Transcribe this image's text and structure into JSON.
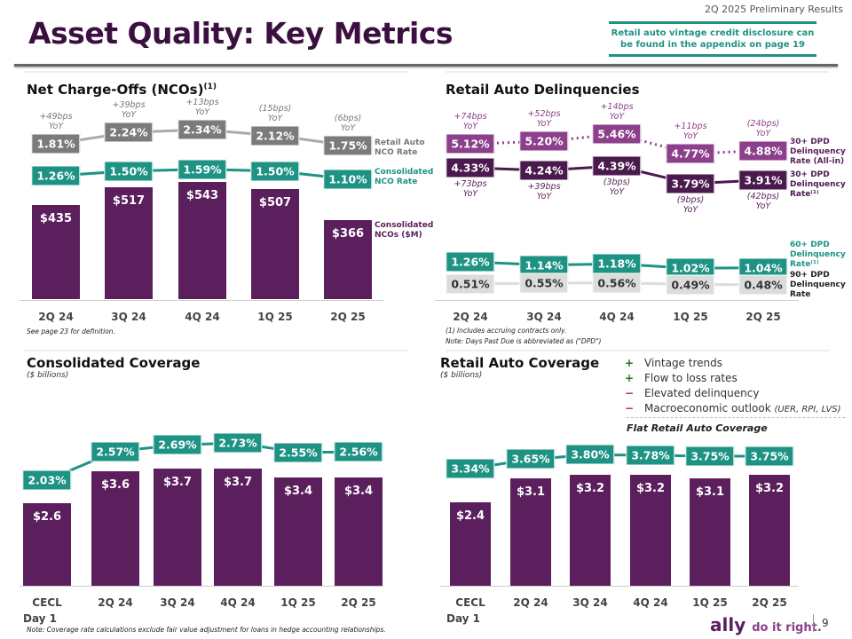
{
  "header": {
    "title": "Asset Quality: Key Metrics",
    "results": "2Q 2025 Preliminary Results",
    "disclosure": "Retail auto vintage credit disclosure can be found in the appendix on page 19"
  },
  "colors": {
    "purple": "#5a1f5c",
    "teal": "#1e9384",
    "grey": "#7b7b7b",
    "lightgrey": "#dcdcdc",
    "magenta": "#8c3f8a",
    "darkpurple": "#4a1a4e"
  },
  "nco": {
    "title": "Net Charge-Offs (NCOs)",
    "sup": "(1)",
    "footnote": "See page 23 for definition.",
    "legend": {
      "retail": "Retail Auto\nNCO Rate",
      "consolidated": "Consolidated\nNCO Rate",
      "ncos": "Consolidated\nNCOs ($M)"
    }
  },
  "delinq": {
    "title": "Retail Auto Delinquencies",
    "footnote1": "(1) Includes accruing contracts only.",
    "footnote2": "Note: Days Past Due is abbreviated as (\"DPD\")",
    "legend": {
      "allin": "30+ DPD\nDelinquency\nRate (All-in)",
      "d30": "30+ DPD\nDelinquency\nRate⁽¹⁾",
      "d60": "60+ DPD\nDelinquency\nRate⁽¹⁾",
      "d90": "90+ DPD\nDelinquency\nRate"
    }
  },
  "cons_cov": {
    "title": "Consolidated Coverage",
    "subtitle": "($ billions)"
  },
  "retail_cov": {
    "title": "Retail Auto Coverage",
    "subtitle": "($ billions)",
    "drivers": [
      {
        "sign": "+",
        "text": "Vintage trends"
      },
      {
        "sign": "+",
        "text": "Flow to loss rates"
      },
      {
        "sign": "−",
        "text": "Elevated delinquency"
      },
      {
        "sign": "−",
        "text": "Macroeconomic outlook",
        "note": "(UER, RPI, LVS)"
      }
    ],
    "conclusion": "Flat Retail Auto Coverage"
  },
  "footer": {
    "note": "Note: Coverage rate calculations exclude fair value adjustment for loans in hedge accounting relationships.",
    "logo": "ally do it right.",
    "page": "9"
  },
  "chart_data": [
    {
      "type": "bar",
      "name": "nco",
      "categories": [
        "2Q 24",
        "3Q 24",
        "4Q 24",
        "1Q 25",
        "2Q 25"
      ],
      "series": [
        {
          "name": "Consolidated NCOs ($M)",
          "type": "bar",
          "values": [
            435,
            517,
            543,
            507,
            366
          ],
          "labels": [
            "$435",
            "$517",
            "$543",
            "$507",
            "$366"
          ]
        },
        {
          "name": "Retail Auto NCO Rate",
          "type": "line",
          "values": [
            1.81,
            2.24,
            2.34,
            2.12,
            1.75
          ],
          "labels": [
            "1.81%",
            "2.24%",
            "2.34%",
            "2.12%",
            "1.75%"
          ],
          "yoy": [
            "+49bps\nYoY",
            "+39bps\nYoY",
            "+13bps\nYoY",
            "(15bps)\nYoY",
            "(6bps)\nYoY"
          ]
        },
        {
          "name": "Consolidated NCO Rate",
          "type": "line",
          "values": [
            1.26,
            1.5,
            1.59,
            1.5,
            1.1
          ],
          "labels": [
            "1.26%",
            "1.50%",
            "1.59%",
            "1.50%",
            "1.10%"
          ]
        }
      ]
    },
    {
      "type": "line",
      "name": "delinquencies",
      "categories": [
        "2Q 24",
        "3Q 24",
        "4Q 24",
        "1Q 25",
        "2Q 25"
      ],
      "series": [
        {
          "name": "30+ DPD Delinquency Rate (All-in)",
          "values": [
            5.12,
            5.2,
            5.46,
            4.77,
            4.88
          ],
          "labels": [
            "5.12%",
            "5.20%",
            "5.46%",
            "4.77%",
            "4.88%"
          ],
          "yoy": [
            "+74bps\nYoY",
            "+52bps\nYoY",
            "+14bps\nYoY",
            "+11bps\nYoY",
            "(24bps)\nYoY"
          ]
        },
        {
          "name": "30+ DPD Delinquency Rate",
          "values": [
            4.33,
            4.24,
            4.39,
            3.79,
            3.91
          ],
          "labels": [
            "4.33%",
            "4.24%",
            "4.39%",
            "3.79%",
            "3.91%"
          ],
          "yoy": [
            "+73bps\nYoY",
            "+39bps\nYoY",
            "(3bps)\nYoY",
            "(9bps)\nYoY",
            "(42bps)\nYoY"
          ]
        },
        {
          "name": "60+ DPD Delinquency Rate",
          "values": [
            1.26,
            1.14,
            1.18,
            1.02,
            1.04
          ],
          "labels": [
            "1.26%",
            "1.14%",
            "1.18%",
            "1.02%",
            "1.04%"
          ]
        },
        {
          "name": "90+ DPD Delinquency Rate",
          "values": [
            0.51,
            0.55,
            0.56,
            0.49,
            0.48
          ],
          "labels": [
            "0.51%",
            "0.55%",
            "0.56%",
            "0.49%",
            "0.48%"
          ]
        }
      ]
    },
    {
      "type": "bar",
      "name": "consolidated_coverage",
      "categories": [
        "CECL\nDay 1",
        "2Q 24",
        "3Q 24",
        "4Q 24",
        "1Q 25",
        "2Q 25"
      ],
      "series": [
        {
          "type": "bar",
          "values": [
            2.6,
            3.6,
            3.7,
            3.7,
            3.4,
            3.4
          ],
          "labels": [
            "$2.6",
            "$3.6",
            "$3.7",
            "$3.7",
            "$3.4",
            "$3.4"
          ]
        },
        {
          "type": "line",
          "values": [
            2.03,
            2.57,
            2.69,
            2.73,
            2.55,
            2.56
          ],
          "labels": [
            "2.03%",
            "2.57%",
            "2.69%",
            "2.73%",
            "2.55%",
            "2.56%"
          ]
        }
      ]
    },
    {
      "type": "bar",
      "name": "retail_coverage",
      "categories": [
        "CECL\nDay 1",
        "2Q 24",
        "3Q 24",
        "4Q 24",
        "1Q 25",
        "2Q 25"
      ],
      "series": [
        {
          "type": "bar",
          "values": [
            2.4,
            3.1,
            3.2,
            3.2,
            3.1,
            3.2
          ],
          "labels": [
            "$2.4",
            "$3.1",
            "$3.2",
            "$3.2",
            "$3.1",
            "$3.2"
          ]
        },
        {
          "type": "line",
          "values": [
            3.34,
            3.65,
            3.8,
            3.78,
            3.75,
            3.75
          ],
          "labels": [
            "3.34%",
            "3.65%",
            "3.80%",
            "3.78%",
            "3.75%",
            "3.75%"
          ]
        }
      ]
    }
  ]
}
